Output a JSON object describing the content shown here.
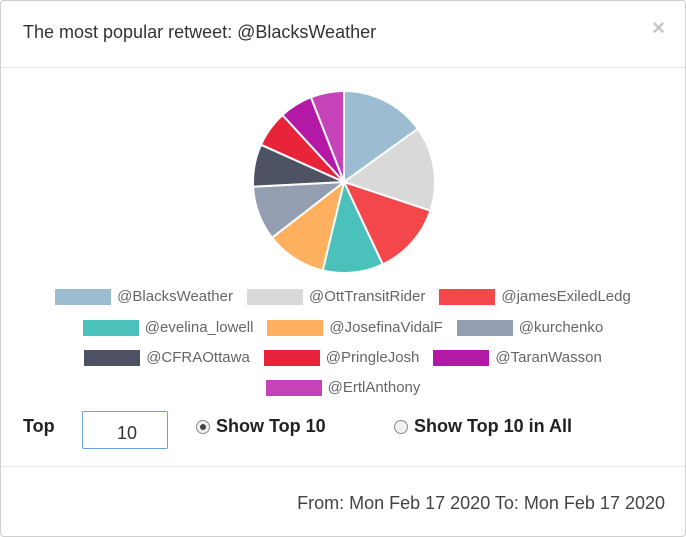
{
  "header": {
    "title": "The most popular retweet: @BlacksWeather",
    "close_icon": "×"
  },
  "chart_data": {
    "type": "pie",
    "slices": [
      {
        "label": "@BlacksWeather",
        "value": 14,
        "color": "#9bbcd1"
      },
      {
        "label": "@OttTransitRider",
        "value": 14,
        "color": "#d9d9d9"
      },
      {
        "label": "@jamesExiledLedg",
        "value": 12,
        "color": "#f4474b"
      },
      {
        "label": "@evelina_lowell",
        "value": 10,
        "color": "#4bc1bc"
      },
      {
        "label": "@JosefinaVidalF",
        "value": 10,
        "color": "#ffb05e"
      },
      {
        "label": "@kurchenko",
        "value": 9,
        "color": "#939fb1"
      },
      {
        "label": "@CFRAOttawa",
        "value": 7,
        "color": "#4d5363"
      },
      {
        "label": "@PringleJosh",
        "value": 6,
        "color": "#e8243a"
      },
      {
        "label": "@TaranWasson",
        "value": 5.5,
        "color": "#b318a7"
      },
      {
        "label": "@ErtlAnthony",
        "value": 5.5,
        "color": "#c542b8"
      }
    ]
  },
  "legend_rows": [
    [
      0,
      1,
      2
    ],
    [
      3,
      4,
      5
    ],
    [
      6,
      7,
      8
    ],
    [
      9
    ]
  ],
  "controls": {
    "top_label": "Top",
    "top_value": "10",
    "option_top": "Show Top 10",
    "option_all": "Show Top 10 in All"
  },
  "footer": {
    "date_range": "From: Mon Feb 17 2020 To: Mon Feb 17 2020"
  }
}
